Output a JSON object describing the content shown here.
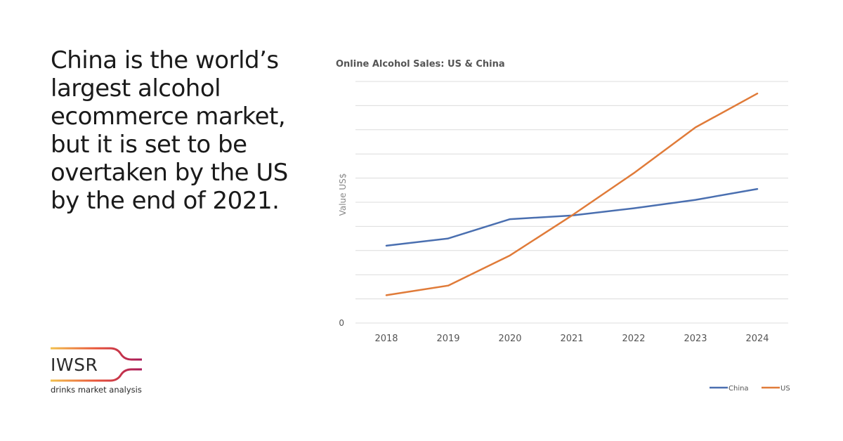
{
  "headline": "China is the world’s largest alcohol ecommerce market, but it is set to be overtaken by the US by the end of 2021.",
  "logo": {
    "name": "IWSR",
    "tagline": "drinks market analysis",
    "colors": [
      "#f2c14e",
      "#e8543a",
      "#a8195a"
    ]
  },
  "chart_data": {
    "type": "line",
    "title": "Online Alcohol Sales: US & China",
    "xlabel": "",
    "ylabel": "Value US$",
    "x": [
      "2018",
      "2019",
      "2020",
      "2021",
      "2022",
      "2023",
      "2024"
    ],
    "y_tick_labels": [
      "0"
    ],
    "ylim": [
      0,
      10
    ],
    "grid": true,
    "legend_position": "bottom-right",
    "series": [
      {
        "name": "China",
        "color": "#4a6fb0",
        "values": [
          3.2,
          3.5,
          4.3,
          4.45,
          4.75,
          5.1,
          5.55
        ]
      },
      {
        "name": "US",
        "color": "#e07b39",
        "values": [
          1.15,
          1.55,
          2.8,
          4.45,
          6.2,
          8.1,
          9.5
        ]
      }
    ]
  }
}
